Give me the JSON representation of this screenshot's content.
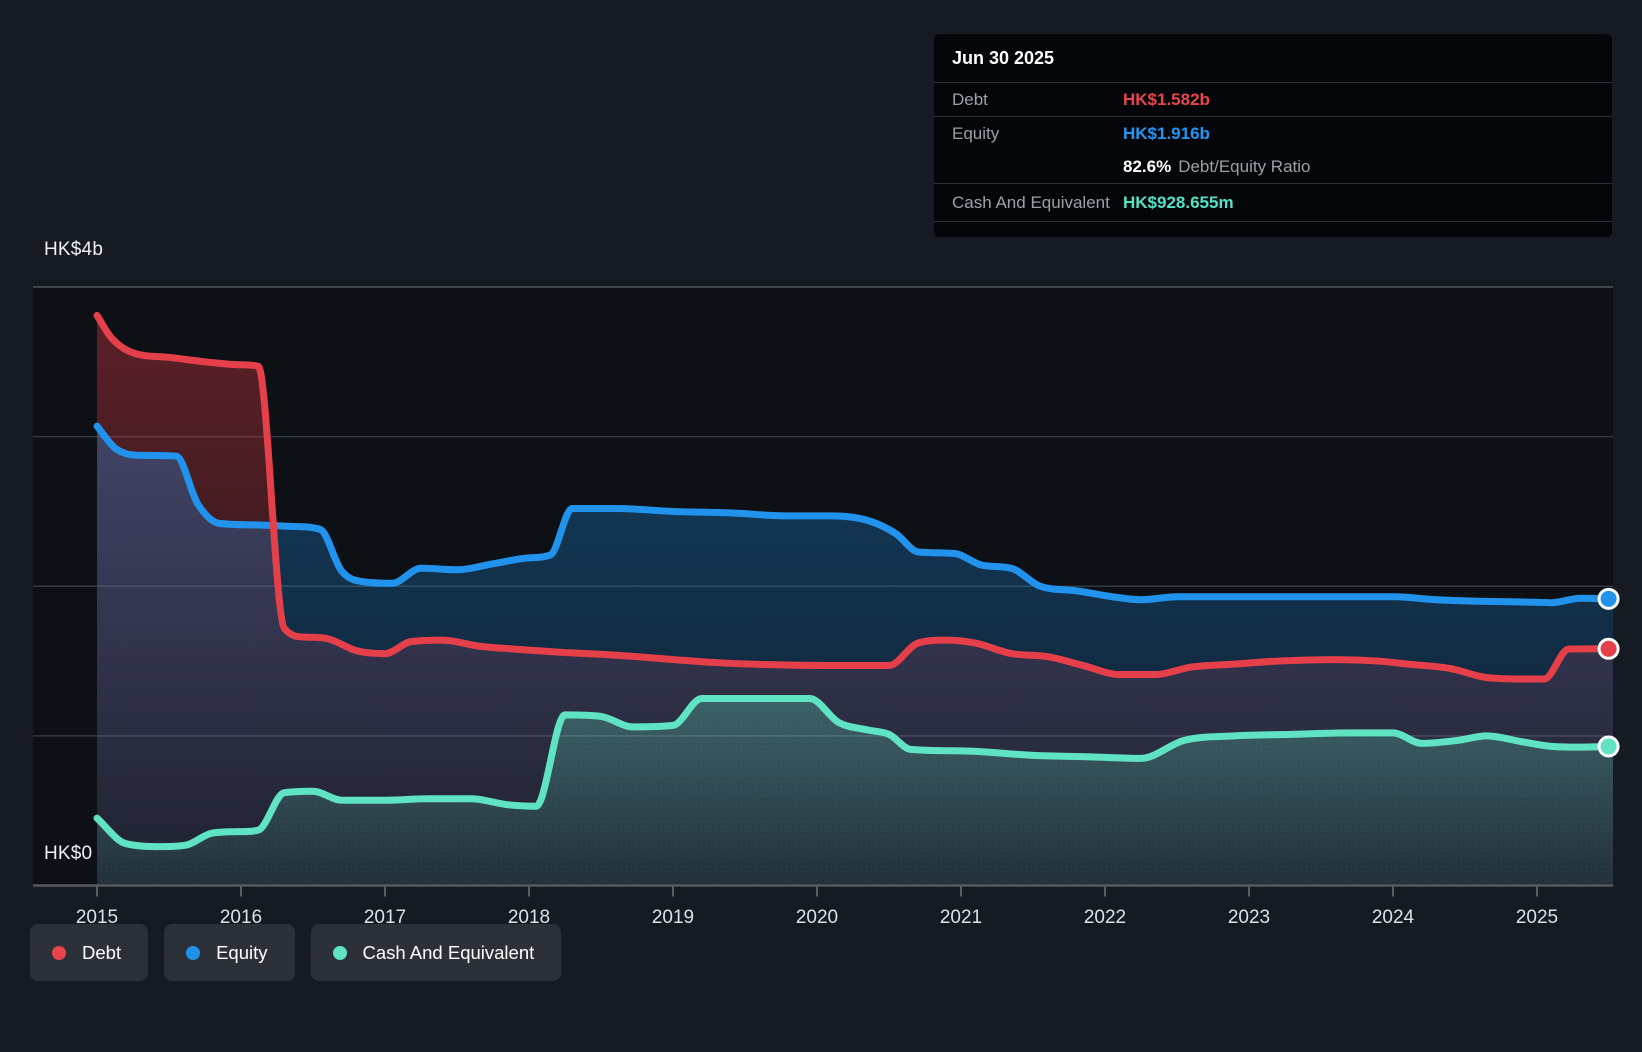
{
  "y_axis": {
    "top_label": "HK$4b",
    "bottom_label": "HK$0"
  },
  "x_axis": {
    "ticks": [
      "2015",
      "2016",
      "2017",
      "2018",
      "2019",
      "2020",
      "2021",
      "2022",
      "2023",
      "2024",
      "2025"
    ]
  },
  "tooltip": {
    "date": "Jun 30 2025",
    "debt_label": "Debt",
    "debt_value": "HK$1.582b",
    "equity_label": "Equity",
    "equity_value": "HK$1.916b",
    "ratio_value": "82.6%",
    "ratio_label": "Debt/Equity Ratio",
    "cash_label": "Cash And Equivalent",
    "cash_value": "HK$928.655m"
  },
  "legend": [
    {
      "label": "Debt",
      "color": "#e8444c"
    },
    {
      "label": "Equity",
      "color": "#2191ea"
    },
    {
      "label": "Cash And Equivalent",
      "color": "#5fe3c2"
    }
  ],
  "colors": {
    "page_bg": "#161b23",
    "plot_bg": "#0d1116",
    "grid_top": "#3f444b",
    "grid_inner": "#333942",
    "axis_line": "#56595f",
    "tick": "#5a5e63",
    "year_label": "#dde1e6",
    "dot_stroke": "#fafbfc"
  },
  "chart_data": {
    "type": "area",
    "title": "Debt to Equity History (HK$ billions)",
    "x_domain": [
      2015,
      2025.497
    ],
    "ylim": [
      0,
      4
    ],
    "y_unit": "HK$ billions",
    "grid": true,
    "legend_position": "bottom",
    "last_point_date": "Jun 30 2025",
    "series": [
      {
        "name": "Debt",
        "color": "#e5404a",
        "end_value": 1.582,
        "points": [
          [
            2015.0,
            3.81
          ],
          [
            2015.1,
            3.66
          ],
          [
            2015.25,
            3.56
          ],
          [
            2015.5,
            3.53
          ],
          [
            2015.75,
            3.5
          ],
          [
            2016.0,
            3.48
          ],
          [
            2016.12,
            3.47
          ],
          [
            2016.3,
            1.72
          ],
          [
            2016.45,
            1.66
          ],
          [
            2016.6,
            1.65
          ],
          [
            2016.8,
            1.57
          ],
          [
            2017.0,
            1.55
          ],
          [
            2017.18,
            1.63
          ],
          [
            2017.4,
            1.64
          ],
          [
            2017.65,
            1.6
          ],
          [
            2017.9,
            1.58
          ],
          [
            2018.2,
            1.56
          ],
          [
            2018.6,
            1.54
          ],
          [
            2019.0,
            1.51
          ],
          [
            2019.3,
            1.49
          ],
          [
            2019.7,
            1.475
          ],
          [
            2020.1,
            1.47
          ],
          [
            2020.5,
            1.47
          ],
          [
            2020.7,
            1.62
          ],
          [
            2020.9,
            1.64
          ],
          [
            2021.1,
            1.62
          ],
          [
            2021.35,
            1.55
          ],
          [
            2021.6,
            1.53
          ],
          [
            2021.85,
            1.47
          ],
          [
            2022.1,
            1.41
          ],
          [
            2022.35,
            1.41
          ],
          [
            2022.6,
            1.46
          ],
          [
            2022.9,
            1.48
          ],
          [
            2023.2,
            1.5
          ],
          [
            2023.6,
            1.51
          ],
          [
            2023.9,
            1.5
          ],
          [
            2024.1,
            1.48
          ],
          [
            2024.4,
            1.45
          ],
          [
            2024.65,
            1.39
          ],
          [
            2024.9,
            1.38
          ],
          [
            2025.05,
            1.38
          ],
          [
            2025.22,
            1.58
          ],
          [
            2025.497,
            1.582
          ]
        ]
      },
      {
        "name": "Equity",
        "color": "#2293ec",
        "end_value": 1.916,
        "points": [
          [
            2015.0,
            3.07
          ],
          [
            2015.13,
            2.92
          ],
          [
            2015.3,
            2.875
          ],
          [
            2015.55,
            2.87
          ],
          [
            2015.7,
            2.55
          ],
          [
            2015.85,
            2.42
          ],
          [
            2016.1,
            2.41
          ],
          [
            2016.35,
            2.4
          ],
          [
            2016.55,
            2.38
          ],
          [
            2016.7,
            2.1
          ],
          [
            2016.85,
            2.03
          ],
          [
            2017.05,
            2.02
          ],
          [
            2017.25,
            2.12
          ],
          [
            2017.5,
            2.11
          ],
          [
            2017.75,
            2.15
          ],
          [
            2018.0,
            2.19
          ],
          [
            2018.15,
            2.21
          ],
          [
            2018.3,
            2.52
          ],
          [
            2018.6,
            2.52
          ],
          [
            2019.0,
            2.5
          ],
          [
            2019.4,
            2.49
          ],
          [
            2019.8,
            2.47
          ],
          [
            2020.1,
            2.47
          ],
          [
            2020.35,
            2.44
          ],
          [
            2020.55,
            2.35
          ],
          [
            2020.7,
            2.23
          ],
          [
            2020.95,
            2.22
          ],
          [
            2021.15,
            2.14
          ],
          [
            2021.35,
            2.12
          ],
          [
            2021.55,
            2.0
          ],
          [
            2021.8,
            1.97
          ],
          [
            2022.05,
            1.93
          ],
          [
            2022.25,
            1.91
          ],
          [
            2022.5,
            1.93
          ],
          [
            2023.0,
            1.93
          ],
          [
            2023.5,
            1.93
          ],
          [
            2024.0,
            1.93
          ],
          [
            2024.3,
            1.91
          ],
          [
            2024.6,
            1.9
          ],
          [
            2024.9,
            1.895
          ],
          [
            2025.1,
            1.89
          ],
          [
            2025.3,
            1.92
          ],
          [
            2025.497,
            1.916
          ]
        ]
      },
      {
        "name": "Cash And Equivalent",
        "color": "#5fe3c2",
        "end_value": 0.929,
        "points": [
          [
            2015.0,
            0.45
          ],
          [
            2015.2,
            0.28
          ],
          [
            2015.45,
            0.26
          ],
          [
            2015.62,
            0.27
          ],
          [
            2015.8,
            0.35
          ],
          [
            2016.0,
            0.36
          ],
          [
            2016.12,
            0.37
          ],
          [
            2016.3,
            0.62
          ],
          [
            2016.5,
            0.63
          ],
          [
            2016.7,
            0.57
          ],
          [
            2017.0,
            0.57
          ],
          [
            2017.3,
            0.58
          ],
          [
            2017.6,
            0.58
          ],
          [
            2017.85,
            0.54
          ],
          [
            2018.05,
            0.53
          ],
          [
            2018.25,
            1.14
          ],
          [
            2018.5,
            1.13
          ],
          [
            2018.72,
            1.06
          ],
          [
            2019.0,
            1.07
          ],
          [
            2019.2,
            1.25
          ],
          [
            2019.6,
            1.25
          ],
          [
            2019.95,
            1.25
          ],
          [
            2020.15,
            1.09
          ],
          [
            2020.35,
            1.04
          ],
          [
            2020.5,
            1.01
          ],
          [
            2020.65,
            0.91
          ],
          [
            2021.0,
            0.9
          ],
          [
            2021.5,
            0.87
          ],
          [
            2021.9,
            0.86
          ],
          [
            2022.25,
            0.85
          ],
          [
            2022.55,
            0.97
          ],
          [
            2022.9,
            1.0
          ],
          [
            2023.3,
            1.01
          ],
          [
            2023.7,
            1.02
          ],
          [
            2024.0,
            1.02
          ],
          [
            2024.2,
            0.95
          ],
          [
            2024.45,
            0.97
          ],
          [
            2024.65,
            1.0
          ],
          [
            2024.9,
            0.96
          ],
          [
            2025.1,
            0.93
          ],
          [
            2025.3,
            0.925
          ],
          [
            2025.497,
            0.929
          ]
        ]
      }
    ]
  }
}
